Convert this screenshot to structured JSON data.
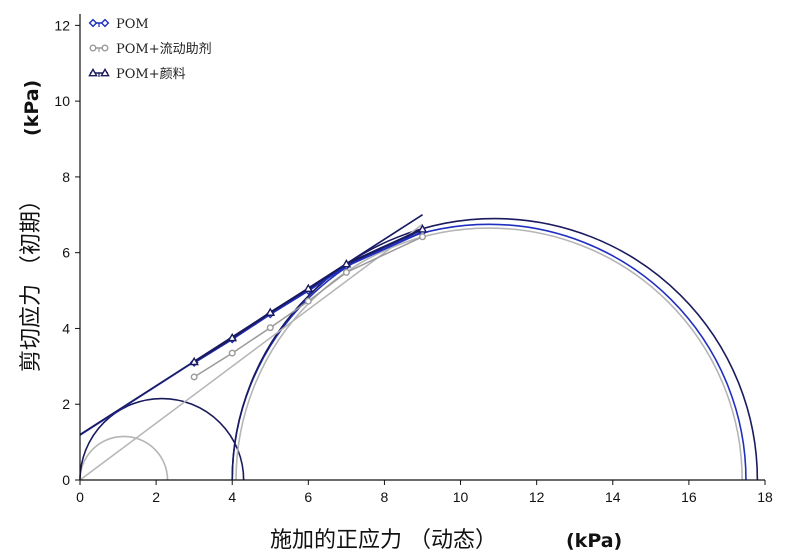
{
  "chart_data": {
    "type": "scatter",
    "x_axis": {
      "label": "施加的正应力 （动态）",
      "unit": "(kPa)",
      "range": [
        0,
        18
      ],
      "ticks": [
        0,
        2,
        4,
        6,
        8,
        10,
        12,
        14,
        16,
        18
      ]
    },
    "y_axis": {
      "label": "剪切应力 （初期）",
      "unit": "(kPa)",
      "range": [
        0,
        12.3
      ],
      "ticks": [
        0,
        2,
        4,
        6,
        8,
        10,
        12
      ]
    },
    "grid": false,
    "legend_position": "top-left",
    "series": [
      {
        "name": "POM",
        "color": "#1f2fbf",
        "marker": "diamond",
        "x": [
          3,
          4,
          5,
          6,
          7,
          9
        ],
        "y": [
          3.1,
          3.72,
          4.38,
          5.0,
          5.65,
          6.55
        ]
      },
      {
        "name": "POM+流动助剂",
        "color": "#9a9a9a",
        "marker": "circle",
        "x": [
          3,
          4,
          5,
          6,
          7,
          9
        ],
        "y": [
          2.72,
          3.35,
          4.02,
          4.72,
          5.48,
          6.42
        ]
      },
      {
        "name": "POM+颜料",
        "color": "#1a1a5e",
        "marker": "triangle",
        "x": [
          3,
          4,
          5,
          6,
          7,
          9
        ],
        "y": [
          3.12,
          3.75,
          4.42,
          5.05,
          5.7,
          6.62
        ]
      }
    ],
    "fit_lines": [
      {
        "series": "POM",
        "color": "#1f2fbf",
        "x": [
          0,
          9
        ],
        "y": [
          1.18,
          7.0
        ]
      },
      {
        "series": "POM+流动助剂",
        "color": "#b5b5b5",
        "x": [
          0,
          9
        ],
        "y": [
          0.0,
          6.75
        ]
      },
      {
        "series": "POM+颜料",
        "color": "#1a1a5e",
        "x": [
          0,
          9
        ],
        "y": [
          1.2,
          7.0
        ]
      }
    ],
    "mohr_circles": [
      {
        "series": "POM+流动助剂",
        "color": "#b5b5b5",
        "center": 1.15,
        "radius": 1.15
      },
      {
        "series": "POM+颜料",
        "color": "#1a1a5e",
        "center": 2.15,
        "radius": 2.15
      },
      {
        "series": "POM+流动助剂",
        "color": "#b5b5b5",
        "center": 10.75,
        "radius": 6.65
      },
      {
        "series": "POM",
        "color": "#1f2fbf",
        "center": 10.75,
        "radius": 6.75
      },
      {
        "series": "POM+颜料",
        "color": "#1a1a5e",
        "center": 10.9,
        "radius": 6.9
      }
    ]
  }
}
